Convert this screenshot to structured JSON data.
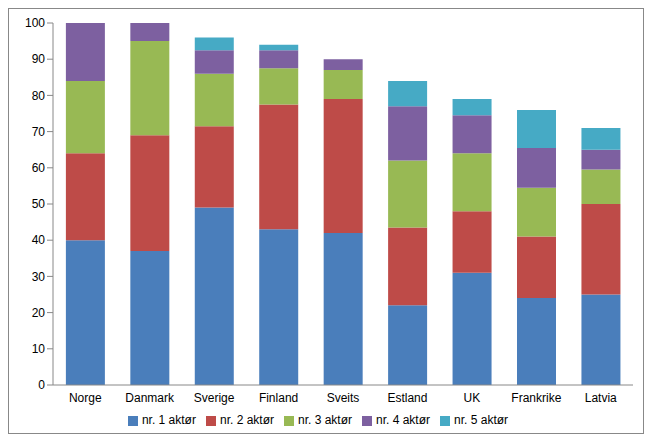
{
  "chart_data": {
    "type": "bar",
    "stacked": true,
    "grid": false,
    "legend": "bottom",
    "categories": [
      "Norge",
      "Danmark",
      "Sverige",
      "Finland",
      "Sveits",
      "Estland",
      "UK",
      "Frankrike",
      "Latvia"
    ],
    "ylim": [
      0,
      100
    ],
    "yticks": [
      0,
      10,
      20,
      30,
      40,
      50,
      60,
      70,
      80,
      90,
      100
    ],
    "series": [
      {
        "name": "nr. 1 aktør",
        "color": "#4a7ebb",
        "values": [
          40,
          37,
          49,
          43,
          42,
          22,
          31,
          24,
          25
        ]
      },
      {
        "name": "nr. 2 aktør",
        "color": "#be4b48",
        "values": [
          24,
          32,
          22.5,
          34.5,
          37,
          21.5,
          17,
          17,
          25
        ]
      },
      {
        "name": "nr. 3 aktør",
        "color": "#98b954",
        "values": [
          20,
          26,
          14.5,
          10,
          8,
          18.5,
          16,
          13.5,
          9.5
        ]
      },
      {
        "name": "nr. 4 aktør",
        "color": "#7d60a0",
        "values": [
          16,
          5,
          6.5,
          5,
          3,
          15,
          10.5,
          11,
          5.5
        ]
      },
      {
        "name": "nr. 5 aktør",
        "color": "#46aac5",
        "values": [
          0,
          0,
          3.5,
          1.5,
          0,
          7,
          4.5,
          10.5,
          6
        ]
      }
    ]
  }
}
